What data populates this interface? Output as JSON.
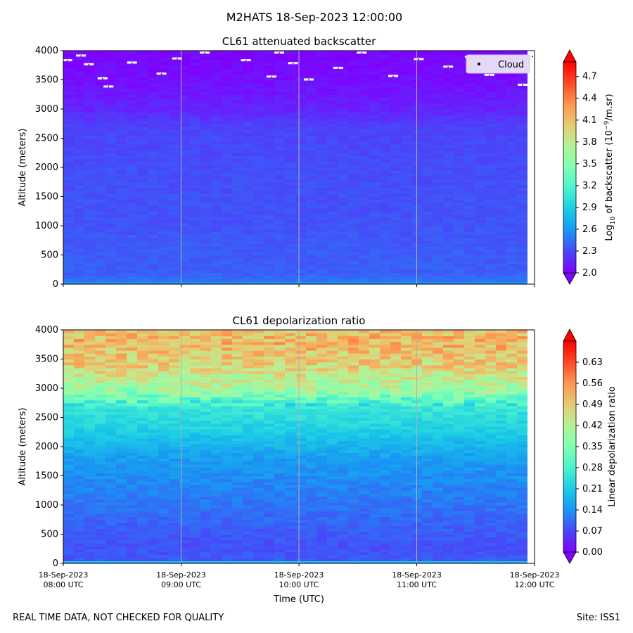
{
  "figure": {
    "title": "M2HATS 18-Sep-2023 12:00:00",
    "footer_left": "REAL TIME DATA, NOT CHECKED FOR QUALITY",
    "footer_right": "Site: ISS1",
    "xlabel": "Time (UTC)"
  },
  "colormap": [
    "#8000ff",
    "#4a45f9",
    "#1996f3",
    "#1acbe6",
    "#4cf2ce",
    "#80ffb4",
    "#b3f396",
    "#e6cb73",
    "#ff964f",
    "#ff4a26",
    "#ff0000"
  ],
  "chart_data": [
    {
      "type": "heatmap",
      "title": "CL61 attenuated backscatter",
      "ylabel": "Altitude (meters)",
      "colorbar_label_prefix": "Log",
      "colorbar_label_sub": "10",
      "colorbar_label_mid": " of backscatter (10",
      "colorbar_label_sup": "−9",
      "colorbar_label_suffix": "/m.sr)",
      "x_ticks": [
        "18-Sep-2023\n08:00 UTC",
        "18-Sep-2023\n09:00 UTC",
        "18-Sep-2023\n10:00 UTC",
        "18-Sep-2023\n11:00 UTC",
        "18-Sep-2023\n12:00 UTC"
      ],
      "x_range_utc_hours": [
        8,
        12
      ],
      "y_ticks": [
        0,
        500,
        1000,
        1500,
        2000,
        2500,
        3000,
        3500,
        4000
      ],
      "ylim": [
        0,
        4000
      ],
      "color_range": [
        2.0,
        4.9
      ],
      "colorbar_ticks": [
        "2.0",
        "2.3",
        "2.6",
        "2.9",
        "3.2",
        "3.5",
        "3.8",
        "4.1",
        "4.4",
        "4.7"
      ],
      "colorbar_extend": "both",
      "legend": {
        "label": "Cloud",
        "marker": "point",
        "placement": "top-right"
      },
      "field_profile": [
        {
          "altitude": 0,
          "value": 2.55
        },
        {
          "altitude": 60,
          "value": 2.45
        },
        {
          "altitude": 200,
          "value": 2.38
        },
        {
          "altitude": 600,
          "value": 2.37
        },
        {
          "altitude": 1000,
          "value": 2.34
        },
        {
          "altitude": 2000,
          "value": 2.32
        },
        {
          "altitude": 2700,
          "value": 2.28
        },
        {
          "altitude": 3000,
          "value": 2.15
        },
        {
          "altitude": 3500,
          "value": 2.06
        },
        {
          "altitude": 4000,
          "value": 2.02
        }
      ],
      "cloud_points": [
        {
          "time": "08:02",
          "altitude": 3830
        },
        {
          "time": "08:09",
          "altitude": 3910
        },
        {
          "time": "08:13",
          "altitude": 3760
        },
        {
          "time": "08:20",
          "altitude": 3520
        },
        {
          "time": "08:23",
          "altitude": 3380
        },
        {
          "time": "08:35",
          "altitude": 3790
        },
        {
          "time": "08:50",
          "altitude": 3600
        },
        {
          "time": "08:58",
          "altitude": 3860
        },
        {
          "time": "09:12",
          "altitude": 3960
        },
        {
          "time": "09:33",
          "altitude": 3830
        },
        {
          "time": "09:46",
          "altitude": 3550
        },
        {
          "time": "09:50",
          "altitude": 3960
        },
        {
          "time": "09:57",
          "altitude": 3780
        },
        {
          "time": "10:05",
          "altitude": 3500
        },
        {
          "time": "10:20",
          "altitude": 3700
        },
        {
          "time": "10:32",
          "altitude": 3960
        },
        {
          "time": "10:48",
          "altitude": 3560
        },
        {
          "time": "11:01",
          "altitude": 3850
        },
        {
          "time": "11:16",
          "altitude": 3720
        },
        {
          "time": "11:27",
          "altitude": 3890
        },
        {
          "time": "11:37",
          "altitude": 3580
        },
        {
          "time": "11:48",
          "altitude": 3760
        },
        {
          "time": "11:54",
          "altitude": 3410
        },
        {
          "time": "11:59",
          "altitude": 3900
        }
      ]
    },
    {
      "type": "heatmap",
      "title": "CL61 depolarization ratio",
      "ylabel": "Altitude (meters)",
      "colorbar_label": "Linear depolarization ratio",
      "x_ticks": [
        "18-Sep-2023\n08:00 UTC",
        "18-Sep-2023\n09:00 UTC",
        "18-Sep-2023\n10:00 UTC",
        "18-Sep-2023\n11:00 UTC",
        "18-Sep-2023\n12:00 UTC"
      ],
      "x_range_utc_hours": [
        8,
        12
      ],
      "y_ticks": [
        0,
        500,
        1000,
        1500,
        2000,
        2500,
        3000,
        3500,
        4000
      ],
      "ylim": [
        0,
        4000
      ],
      "color_range": [
        0.0,
        0.7
      ],
      "colorbar_ticks": [
        "0.00",
        "0.07",
        "0.14",
        "0.21",
        "0.28",
        "0.35",
        "0.42",
        "0.49",
        "0.56",
        "0.63"
      ],
      "colorbar_extend": "both",
      "field_profile": [
        {
          "altitude": 0,
          "value": 0.09
        },
        {
          "altitude": 300,
          "value": 0.08
        },
        {
          "altitude": 1000,
          "value": 0.11
        },
        {
          "altitude": 1800,
          "value": 0.15
        },
        {
          "altitude": 2300,
          "value": 0.22
        },
        {
          "altitude": 2700,
          "value": 0.26
        },
        {
          "altitude": 3000,
          "value": 0.4
        },
        {
          "altitude": 3400,
          "value": 0.48
        },
        {
          "altitude": 3800,
          "value": 0.52
        },
        {
          "altitude": 4000,
          "value": 0.5
        }
      ]
    }
  ]
}
